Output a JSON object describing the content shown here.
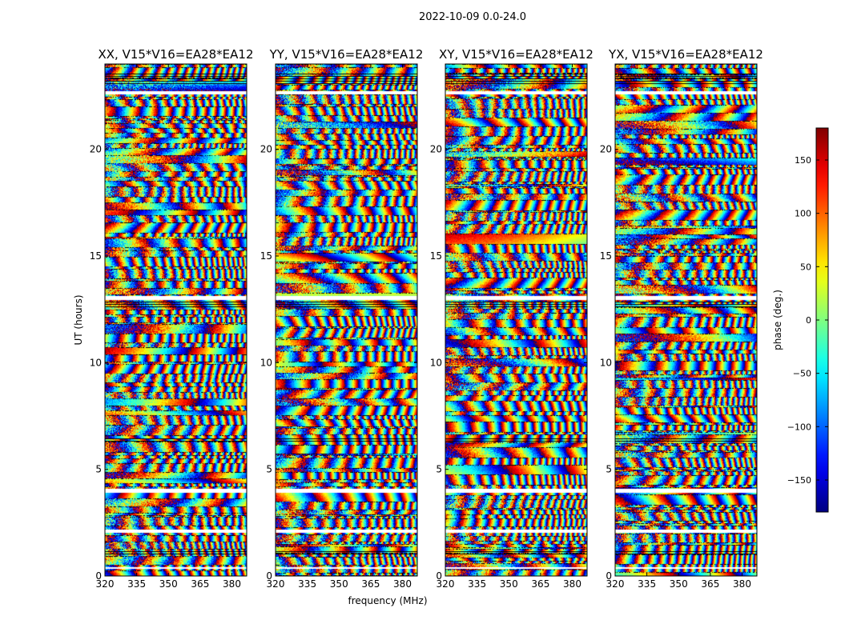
{
  "chart_data": {
    "type": "heatmap",
    "suptitle": "2022-10-09 0.0-24.0",
    "panels": [
      {
        "title": "XX, V15*V16=EA28*EA12",
        "seed": 11
      },
      {
        "title": "YY, V15*V16=EA28*EA12",
        "seed": 23
      },
      {
        "title": "XY, V15*V16=EA28*EA12",
        "seed": 37
      },
      {
        "title": "YX, V15*V16=EA28*EA12",
        "seed": 53
      }
    ],
    "xlabel": "frequency (MHz)",
    "ylabel": "UT (hours)",
    "xlim": [
      320,
      387
    ],
    "ylim": [
      0,
      24
    ],
    "xticks": [
      320,
      335,
      350,
      365,
      380
    ],
    "xtick_labels": [
      "320",
      "335",
      "350",
      "365",
      "380"
    ],
    "yticks": [
      0,
      5,
      10,
      15,
      20
    ],
    "ytick_labels": [
      "0",
      "5",
      "10",
      "15",
      "20"
    ],
    "colorbar": {
      "label": "phase (deg.)",
      "colormap": "jet",
      "range": [
        -180,
        180
      ],
      "ticks": [
        -150,
        -100,
        -50,
        0,
        50,
        100,
        150
      ],
      "tick_labels": [
        "−150",
        "−100",
        "−50",
        "0",
        "50",
        "100",
        "150"
      ]
    },
    "flagged_ut_ranges": [
      [
        0.35,
        0.45
      ],
      [
        2.05,
        2.2
      ],
      [
        3.9,
        4.1
      ],
      [
        12.95,
        13.15
      ],
      [
        22.6,
        22.75
      ]
    ],
    "dark_ut_ranges": [
      [
        23.1,
        23.6
      ],
      [
        12.6,
        12.9
      ],
      [
        6.3,
        6.5
      ],
      [
        1.0,
        1.2
      ]
    ]
  }
}
